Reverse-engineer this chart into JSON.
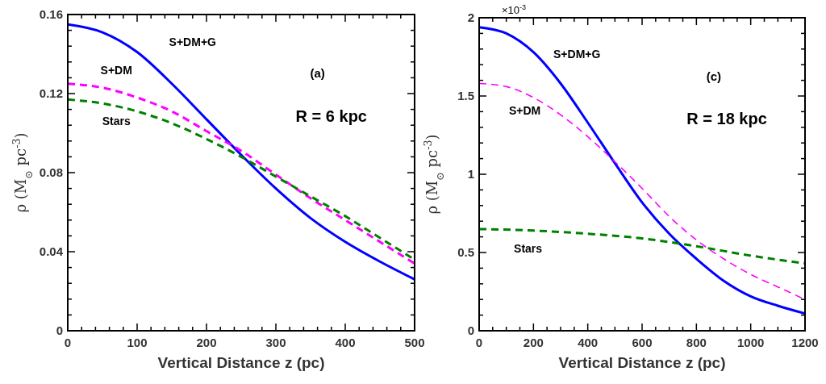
{
  "chart_data": [
    {
      "type": "line",
      "xlabel": "Vertical Distance  z (pc)",
      "ylabel": "ρ (M$_{⊙}$ pc$^{-3}$)",
      "xlim": [
        0,
        500
      ],
      "ylim": [
        0,
        0.16
      ],
      "xticks": [
        0,
        {
          "value": 20,
          "label": null
        },
        {
          "value": 40,
          "label": null
        },
        {
          "value": 60,
          "label": null
        },
        {
          "value": 80,
          "label": null
        },
        100,
        {
          "value": 120,
          "label": null
        },
        {
          "value": 140,
          "label": null
        },
        {
          "value": 160,
          "label": null
        },
        {
          "value": 180,
          "label": null
        },
        200,
        {
          "value": 220,
          "label": null
        },
        {
          "value": 240,
          "label": null
        },
        {
          "value": 260,
          "label": null
        },
        {
          "value": 280,
          "label": null
        },
        300,
        {
          "value": 320,
          "label": null
        },
        {
          "value": 340,
          "label": null
        },
        {
          "value": 360,
          "label": null
        },
        {
          "value": 380,
          "label": null
        },
        400,
        {
          "value": 420,
          "label": null
        },
        {
          "value": 440,
          "label": null
        },
        {
          "value": 460,
          "label": null
        },
        {
          "value": 480,
          "label": null
        },
        500
      ],
      "yticks": [
        0,
        {
          "value": 0.008,
          "label": null
        },
        {
          "value": 0.016,
          "label": null
        },
        {
          "value": 0.024,
          "label": null
        },
        {
          "value": 0.032,
          "label": null
        },
        0.04,
        {
          "value": 0.048,
          "label": null
        },
        {
          "value": 0.056,
          "label": null
        },
        {
          "value": 0.064,
          "label": null
        },
        {
          "value": 0.072,
          "label": null
        },
        0.08,
        {
          "value": 0.088,
          "label": null
        },
        {
          "value": 0.096,
          "label": null
        },
        {
          "value": 0.104,
          "label": null
        },
        {
          "value": 0.112,
          "label": null
        },
        0.12,
        {
          "value": 0.128,
          "label": null
        },
        {
          "value": 0.136,
          "label": null
        },
        {
          "value": 0.144,
          "label": null
        },
        {
          "value": 0.152,
          "label": null
        },
        0.16
      ],
      "series": [
        {
          "name": "S+DM+G",
          "color": "#0000ff",
          "line_style": "solid",
          "x": [
            0,
            50,
            100,
            150,
            200,
            250,
            300,
            350,
            400,
            450,
            500
          ],
          "values": [
            0.155,
            0.151,
            0.141,
            0.125,
            0.107,
            0.089,
            0.072,
            0.057,
            0.045,
            0.035,
            0.026
          ]
        },
        {
          "name": "S+DM",
          "color": "#ff00ff",
          "line_style": "dashed",
          "x": [
            0,
            50,
            100,
            150,
            200,
            250,
            300,
            350,
            400,
            450,
            500
          ],
          "values": [
            0.125,
            0.123,
            0.118,
            0.111,
            0.101,
            0.091,
            0.079,
            0.067,
            0.056,
            0.045,
            0.034
          ]
        },
        {
          "name": "Stars",
          "color": "#007f00",
          "line_style": "dashed",
          "x": [
            0,
            50,
            100,
            150,
            200,
            250,
            300,
            350,
            400,
            450,
            500
          ],
          "values": [
            0.117,
            0.115,
            0.111,
            0.105,
            0.097,
            0.088,
            0.078,
            0.068,
            0.058,
            0.047,
            0.036
          ]
        }
      ],
      "annotations": [
        "(a)",
        "R = 6 kpc"
      ]
    },
    {
      "type": "line",
      "xlabel": "Vertical Distance z (pc)",
      "ylabel": "ρ (M$_{⊙}$ pc$^{-3}$)",
      "xlim": [
        0,
        1200
      ],
      "ylim": [
        0,
        2
      ],
      "xticks": [
        0,
        {
          "value": 50,
          "label": null
        },
        {
          "value": 100,
          "label": null
        },
        {
          "value": 150,
          "label": null
        },
        200,
        {
          "value": 250,
          "label": null
        },
        {
          "value": 300,
          "label": null
        },
        {
          "value": 350,
          "label": null
        },
        400,
        {
          "value": 450,
          "label": null
        },
        {
          "value": 500,
          "label": null
        },
        {
          "value": 550,
          "label": null
        },
        600,
        {
          "value": 650,
          "label": null
        },
        {
          "value": 700,
          "label": null
        },
        {
          "value": 750,
          "label": null
        },
        800,
        {
          "value": 850,
          "label": null
        },
        {
          "value": 900,
          "label": null
        },
        {
          "value": 950,
          "label": null
        },
        1000,
        {
          "value": 1050,
          "label": null
        },
        {
          "value": 1100,
          "label": null
        },
        {
          "value": 1150,
          "label": null
        },
        1200
      ],
      "yticks": [
        0,
        {
          "value": 0.1,
          "label": null
        },
        {
          "value": 0.2,
          "label": null
        },
        {
          "value": 0.3,
          "label": null
        },
        {
          "value": 0.4,
          "label": null
        },
        0.5,
        {
          "value": 0.6,
          "label": null
        },
        {
          "value": 0.7,
          "label": null
        },
        {
          "value": 0.8,
          "label": null
        },
        {
          "value": 0.9,
          "label": null
        },
        1,
        {
          "value": 1.1,
          "label": null
        },
        {
          "value": 1.2,
          "label": null
        },
        {
          "value": 1.3,
          "label": null
        },
        {
          "value": 1.4,
          "label": null
        },
        1.5,
        {
          "value": 1.6,
          "label": null
        },
        {
          "value": 1.7,
          "label": null
        },
        {
          "value": 1.8,
          "label": null
        },
        {
          "value": 1.9,
          "label": null
        },
        2
      ],
      "series": [
        {
          "name": "S+DM+G",
          "color": "#0000ff",
          "line_style": "solid",
          "x": [
            0,
            100,
            200,
            300,
            400,
            500,
            600,
            700,
            800,
            900,
            1000,
            1100,
            1200
          ],
          "values": [
            1.94,
            1.9,
            1.78,
            1.58,
            1.33,
            1.07,
            0.82,
            0.62,
            0.46,
            0.32,
            0.22,
            0.16,
            0.11
          ]
        },
        {
          "name": "S+DM",
          "color": "#ff00ff",
          "line_style": "dashed",
          "x": [
            0,
            100,
            200,
            300,
            400,
            500,
            600,
            700,
            800,
            900,
            1000,
            1100,
            1200
          ],
          "values": [
            1.58,
            1.56,
            1.49,
            1.38,
            1.24,
            1.08,
            0.91,
            0.73,
            0.58,
            0.46,
            0.36,
            0.28,
            0.2
          ]
        },
        {
          "name": "Stars",
          "color": "#007f00",
          "line_style": "dashed",
          "x": [
            0,
            200,
            400,
            600,
            800,
            1000,
            1200
          ],
          "values": [
            0.65,
            0.64,
            0.62,
            0.59,
            0.54,
            0.48,
            0.43
          ]
        }
      ],
      "annotations": [
        "(c)",
        "R = 18 kpc",
        "×10$^{-3}$"
      ]
    }
  ]
}
